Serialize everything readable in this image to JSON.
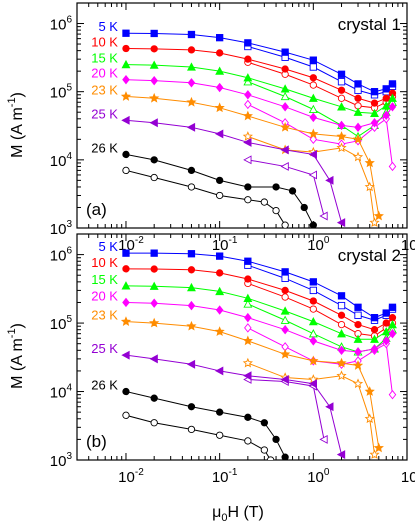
{
  "figure": {
    "xlabel": "μ0H (T)",
    "ylabel": "M (A m-1)"
  },
  "chart_data": [
    {
      "type": "scatter",
      "title": "crystal 1",
      "panel_label": "(a)",
      "xlabel": "μ0H (T)",
      "ylabel": "M (A m-1)",
      "xscale": "log",
      "yscale": "log",
      "xlim": [
        0.003,
        10
      ],
      "ylim": [
        1000,
        2000000
      ],
      "x_ticks": [
        "10-2",
        "10-1",
        "100",
        "101"
      ],
      "y_ticks": [
        "103",
        "104",
        "105",
        "106"
      ],
      "series": [
        {
          "name": "5 K",
          "color": "#0000ff",
          "filled": {
            "x": [
              0.01,
              0.02,
              0.05,
              0.1,
              0.2,
              0.5,
              1,
              2,
              3,
              4.5,
              6,
              7
            ],
            "y": [
              720000,
              715000,
              690000,
              620000,
              520000,
              380000,
              290000,
              180000,
              130000,
              100000,
              110000,
              130000
            ]
          },
          "open": {
            "x": [
              0.2,
              0.5,
              1,
              2,
              3,
              4.5,
              6,
              7
            ],
            "y": [
              460000,
              320000,
              230000,
              140000,
              105000,
              90000,
              100000,
              120000
            ]
          }
        },
        {
          "name": "10 K",
          "color": "#ff0000",
          "filled": {
            "x": [
              0.01,
              0.02,
              0.05,
              0.1,
              0.2,
              0.5,
              1,
              2,
              3,
              4.5,
              6,
              7
            ],
            "y": [
              430000,
              425000,
              410000,
              370000,
              300000,
              215000,
              160000,
              105000,
              80000,
              68000,
              80000,
              95000
            ]
          },
          "open": {
            "x": [
              0.2,
              0.5,
              1,
              2,
              3,
              4.5,
              6,
              7
            ],
            "y": [
              270000,
              180000,
              125000,
              80000,
              62000,
              58000,
              70000,
              85000
            ]
          }
        },
        {
          "name": "15 K",
          "color": "#00ff00",
          "filled": {
            "x": [
              0.01,
              0.02,
              0.05,
              0.1,
              0.2,
              0.5,
              1,
              2,
              3,
              4.5,
              6,
              7
            ],
            "y": [
              250000,
              245000,
              230000,
              200000,
              160000,
              110000,
              80000,
              60000,
              50000,
              48000,
              62000,
              80000
            ]
          },
          "open": {
            "x": [
              0.2,
              0.5,
              1,
              2,
              3,
              4.5,
              6,
              7
            ],
            "y": [
              140000,
              85000,
              55000,
              32000,
              22000,
              32000,
              50000,
              70000
            ]
          }
        },
        {
          "name": "20 K",
          "color": "#ff00ff",
          "filled": {
            "x": [
              0.01,
              0.02,
              0.05,
              0.1,
              0.2,
              0.5,
              1,
              2,
              3,
              4.5,
              6,
              7
            ],
            "y": [
              150000,
              145000,
              135000,
              115000,
              90000,
              60000,
              42000,
              32000,
              30000,
              35000,
              45000,
              60000
            ]
          },
          "open": {
            "x": [
              0.2,
              0.5,
              1,
              2,
              3,
              4.5,
              6,
              7
            ],
            "y": [
              65000,
              35000,
              20000,
              17000,
              19000,
              30000,
              40000,
              8000
            ]
          }
        },
        {
          "name": "23 K",
          "color": "#ff8c00",
          "filled": {
            "x": [
              0.01,
              0.02,
              0.05,
              0.1,
              0.2,
              0.5,
              1,
              2,
              3,
              4,
              5
            ],
            "y": [
              85000,
              80000,
              70000,
              58000,
              44000,
              30000,
              24000,
              22000,
              20000,
              9000,
              1500
            ]
          },
          "open": {
            "x": [
              0.2,
              0.5,
              1,
              2,
              3,
              4,
              4.5
            ],
            "y": [
              22000,
              14000,
              13000,
              15000,
              11000,
              4000,
              1200
            ]
          }
        },
        {
          "name": "25 K",
          "color": "#9400d3",
          "filled": {
            "x": [
              0.01,
              0.02,
              0.05,
              0.1,
              0.2,
              0.5,
              1,
              1.5,
              2
            ],
            "y": [
              38000,
              35000,
              30000,
              24000,
              18000,
              14000,
              12000,
              5000,
              1200
            ]
          },
          "open": {
            "x": [
              0.2,
              0.5,
              1,
              1.3
            ],
            "y": [
              10000,
              8000,
              6000,
              1500
            ]
          }
        },
        {
          "name": "26 K",
          "color": "#000000",
          "filled": {
            "x": [
              0.01,
              0.02,
              0.05,
              0.1,
              0.2,
              0.4,
              0.6,
              0.8,
              1
            ],
            "y": [
              12000,
              10000,
              7000,
              5000,
              4000,
              4000,
              3500,
              2000,
              1100
            ]
          },
          "open": {
            "x": [
              0.01,
              0.02,
              0.05,
              0.1,
              0.2,
              0.3,
              0.4,
              0.5
            ],
            "y": [
              7000,
              5500,
              4000,
              3000,
              2600,
              2400,
              1800,
              1100
            ]
          }
        }
      ]
    },
    {
      "type": "scatter",
      "title": "crystal 2",
      "panel_label": "(b)",
      "xlabel": "μ0H (T)",
      "ylabel": "M (A m-1)",
      "xscale": "log",
      "yscale": "log",
      "xlim": [
        0.003,
        10
      ],
      "ylim": [
        1000,
        2000000
      ],
      "x_ticks": [
        "10-2",
        "10-1",
        "100",
        "101"
      ],
      "y_ticks": [
        "103",
        "104",
        "105",
        "106"
      ],
      "series": [
        {
          "name": "5 K",
          "color": "#0000ff",
          "filled": {
            "x": [
              0.01,
              0.02,
              0.05,
              0.1,
              0.2,
              0.5,
              1,
              2,
              3,
              4.5,
              6,
              7
            ],
            "y": [
              1050000,
              1050000,
              1030000,
              950000,
              800000,
              560000,
              400000,
              250000,
              170000,
              120000,
              140000,
              170000
            ]
          },
          "open": {
            "x": [
              0.2,
              0.5,
              1,
              2,
              3,
              4.5,
              6,
              7
            ],
            "y": [
              700000,
              450000,
              300000,
              180000,
              130000,
              110000,
              130000,
              160000
            ]
          }
        },
        {
          "name": "10 K",
          "color": "#ff0000",
          "filled": {
            "x": [
              0.01,
              0.02,
              0.05,
              0.1,
              0.2,
              0.5,
              1,
              2,
              3,
              4.5,
              6,
              7
            ],
            "y": [
              620000,
              615000,
              600000,
              540000,
              440000,
              300000,
              210000,
              130000,
              95000,
              80000,
              100000,
              120000
            ]
          },
          "open": {
            "x": [
              0.2,
              0.5,
              1,
              2,
              3,
              4.5,
              6,
              7
            ],
            "y": [
              380000,
              240000,
              160000,
              95000,
              70000,
              65000,
              85000,
              100000
            ]
          }
        },
        {
          "name": "15 K",
          "color": "#00ff00",
          "filled": {
            "x": [
              0.01,
              0.02,
              0.05,
              0.1,
              0.2,
              0.5,
              1,
              2,
              3,
              4.5,
              6,
              7
            ],
            "y": [
              350000,
              345000,
              330000,
              290000,
              230000,
              150000,
              105000,
              70000,
              58000,
              58000,
              75000,
              95000
            ]
          },
          "open": {
            "x": [
              0.2,
              0.5,
              1,
              2,
              3,
              4.5,
              6,
              7
            ],
            "y": [
              190000,
              110000,
              70000,
              45000,
              38000,
              42000,
              60000,
              80000
            ]
          }
        },
        {
          "name": "20 K",
          "color": "#ff00ff",
          "filled": {
            "x": [
              0.01,
              0.02,
              0.05,
              0.1,
              0.2,
              0.5,
              1,
              2,
              3,
              4.5,
              6,
              7
            ],
            "y": [
              200000,
              195000,
              180000,
              155000,
              120000,
              80000,
              55000,
              40000,
              38000,
              42000,
              55000,
              70000
            ]
          },
          "open": {
            "x": [
              0.2,
              0.5,
              1,
              2,
              3,
              4.5,
              6,
              7
            ],
            "y": [
              85000,
              45000,
              28000,
              25000,
              28000,
              40000,
              50000,
              9000
            ]
          }
        },
        {
          "name": "23 K",
          "color": "#ff8c00",
          "filled": {
            "x": [
              0.01,
              0.02,
              0.05,
              0.1,
              0.2,
              0.5,
              1,
              2,
              3,
              4,
              5
            ],
            "y": [
              105000,
              100000,
              90000,
              75000,
              55000,
              35000,
              28000,
              26000,
              24000,
              10000,
              1500
            ]
          },
          "open": {
            "x": [
              0.2,
              0.5,
              1,
              2,
              3,
              4,
              4.5
            ],
            "y": [
              26000,
              16000,
              15000,
              17000,
              13000,
              4000,
              1200
            ]
          }
        },
        {
          "name": "25 K",
          "color": "#9400d3",
          "filled": {
            "x": [
              0.01,
              0.02,
              0.05,
              0.1,
              0.2,
              0.5,
              1,
              1.5,
              2
            ],
            "y": [
              34000,
              30000,
              25000,
              20000,
              17000,
              15000,
              13000,
              6000,
              1200
            ]
          },
          "open": {
            "x": [
              0.2,
              0.5,
              1,
              1.3
            ],
            "y": [
              15000,
              14000,
              12000,
              2000
            ]
          }
        },
        {
          "name": "26 K",
          "color": "#000000",
          "filled": {
            "x": [
              0.01,
              0.02,
              0.05,
              0.1,
              0.2,
              0.3,
              0.4,
              0.5
            ],
            "y": [
              10000,
              8000,
              6000,
              5000,
              4200,
              3500,
              2000,
              1100
            ]
          },
          "open": {
            "x": [
              0.01,
              0.02,
              0.05,
              0.1,
              0.2,
              0.3,
              0.35
            ],
            "y": [
              4500,
              3500,
              2800,
              2300,
              1900,
              1400,
              1000
            ]
          }
        }
      ]
    }
  ]
}
